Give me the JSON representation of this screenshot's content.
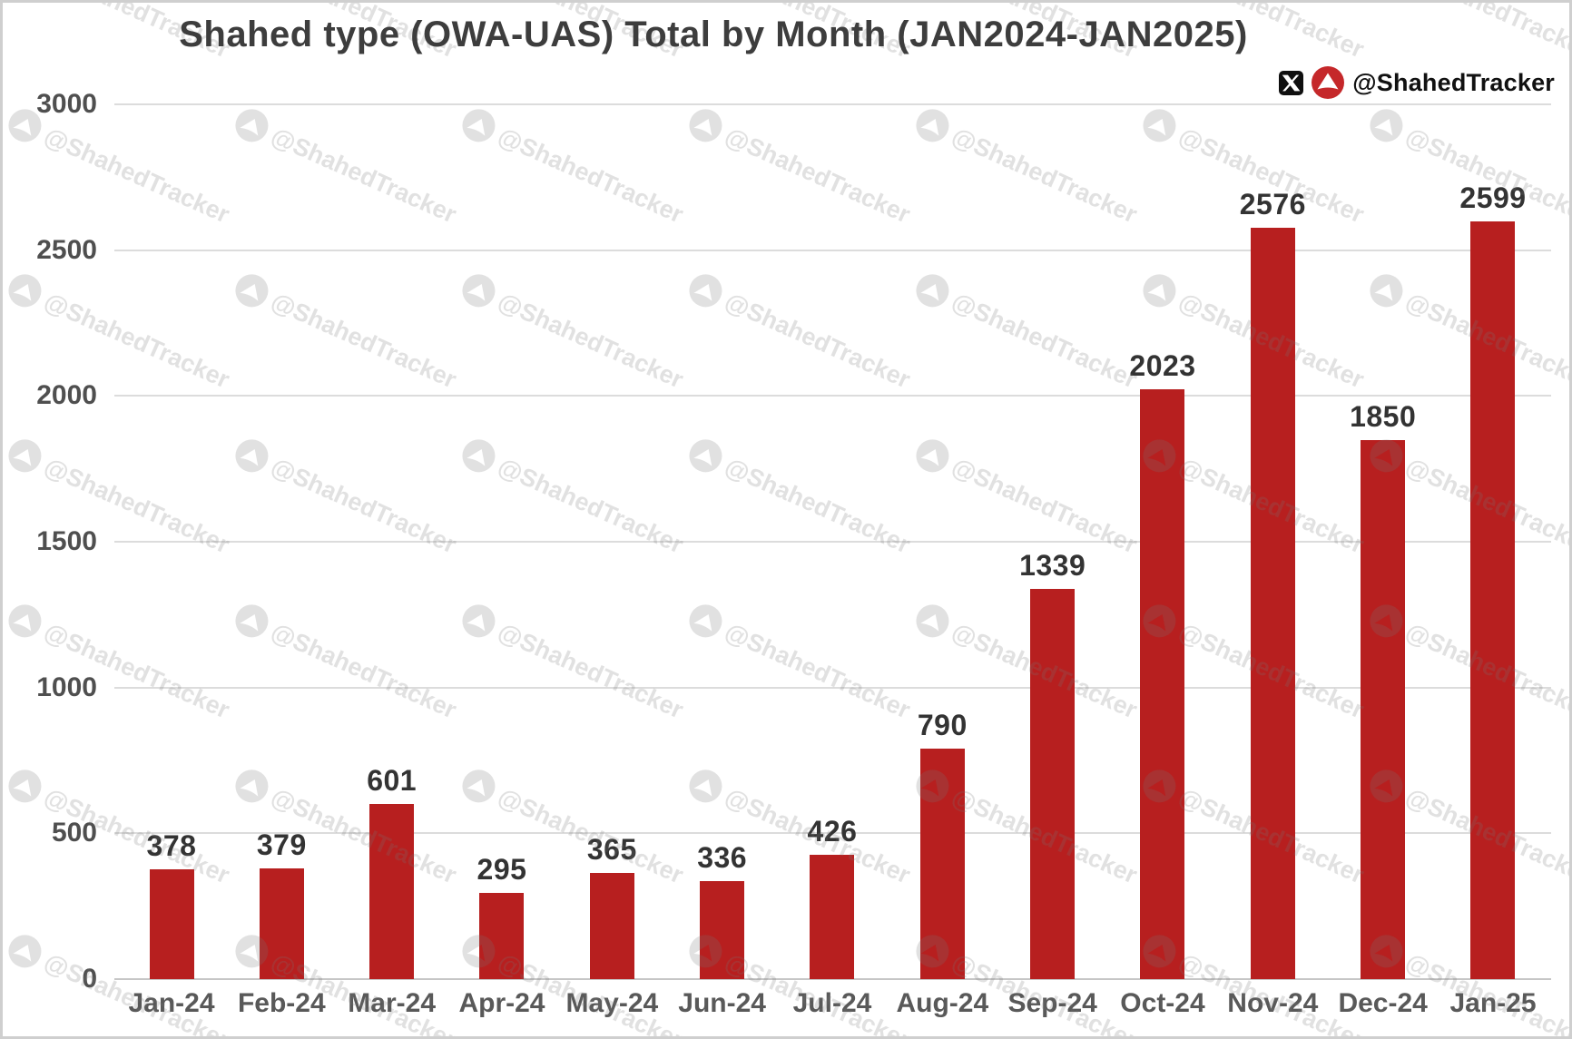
{
  "title": "Shahed type (OWA-UAS) Total by Month (JAN2024-JAN2025)",
  "brand": {
    "handle": "@ShahedTracker"
  },
  "watermark": {
    "text": "@ShahedTracker"
  },
  "chart_data": {
    "type": "bar",
    "title": "Shahed type (OWA-UAS) Total by Month (JAN2024-JAN2025)",
    "categories": [
      "Jan-24",
      "Feb-24",
      "Mar-24",
      "Apr-24",
      "May-24",
      "Jun-24",
      "Jul-24",
      "Aug-24",
      "Sep-24",
      "Oct-24",
      "Nov-24",
      "Dec-24",
      "Jan-25"
    ],
    "values": [
      378,
      379,
      601,
      295,
      365,
      336,
      426,
      790,
      1339,
      2023,
      2576,
      1850,
      2599
    ],
    "xlabel": "",
    "ylabel": "",
    "ylim": [
      0,
      3000
    ],
    "yticks": [
      0,
      500,
      1000,
      1500,
      2000,
      2500,
      3000
    ],
    "grid": true,
    "legend": false,
    "bar_color": "#b71f1f"
  },
  "colors": {
    "bar": "#b71f1f",
    "title_text": "#3d3d3d",
    "y_tick_text": "#4f4f4f",
    "x_tick_text": "#595959",
    "value_label_text": "#333333",
    "gridline": "#dcdcdc",
    "baseline": "#c6c6c6",
    "logo_red": "#c5282a",
    "x_logo_black": "#0f0f0f",
    "background": "#ffffff",
    "frame_border": "#cfcfcf"
  }
}
